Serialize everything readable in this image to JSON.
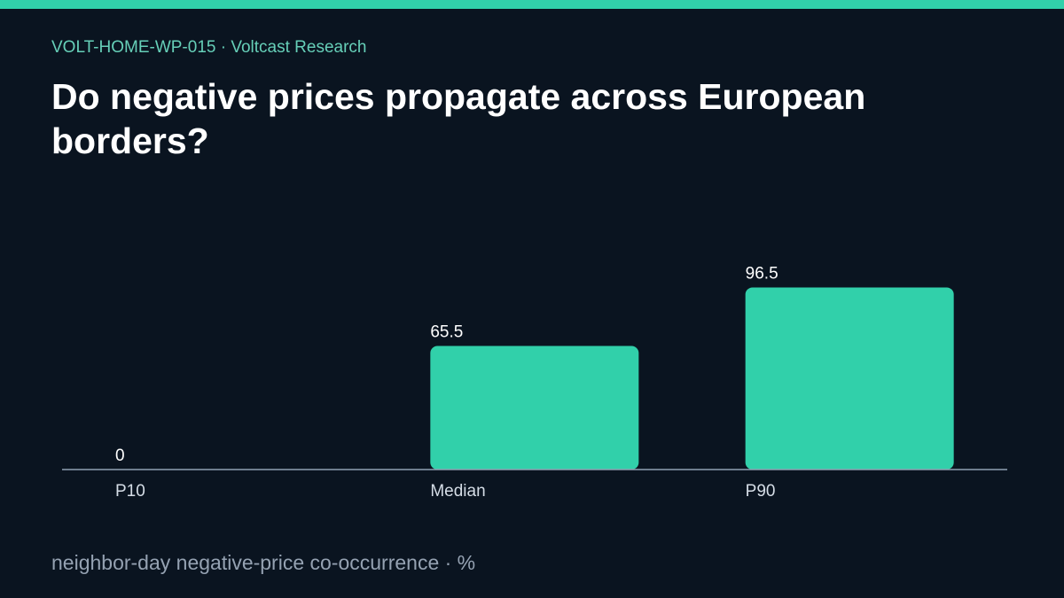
{
  "header": {
    "kicker": "VOLT-HOME-WP-015 · Voltcast Research",
    "title": "Do negative prices propagate across European borders?"
  },
  "footer": {
    "note": "neighbor-day negative-price co-occurrence · %"
  },
  "colors": {
    "background": "#0a1420",
    "accent": "#31d0aa",
    "axis": "#8fa0b2",
    "text_primary": "#ffffff",
    "text_secondary": "#95a2b2"
  },
  "chart_data": {
    "type": "bar",
    "categories": [
      "P10",
      "Median",
      "P90"
    ],
    "values": [
      0,
      65.5,
      96.5
    ],
    "value_labels": [
      "0",
      "65.5",
      "96.5"
    ],
    "title": "",
    "xlabel": "",
    "ylabel": "",
    "unit": "%",
    "ylim": [
      0,
      100
    ],
    "grid": false,
    "legend": "none"
  }
}
